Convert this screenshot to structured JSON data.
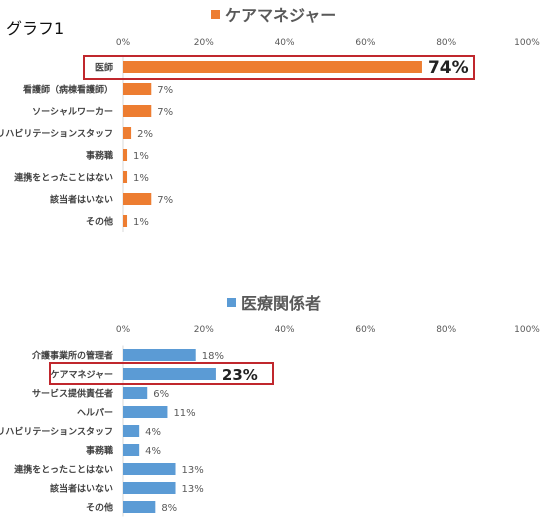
{
  "graph_label": "グラフ1",
  "chart_data": [
    {
      "type": "bar",
      "orientation": "horizontal",
      "title": "ケアマネジャー",
      "xlim": [
        0,
        100
      ],
      "ticks": [
        "0%",
        "20%",
        "40%",
        "60%",
        "80%",
        "100%"
      ],
      "categories": [
        "医師",
        "看護師（病棟看護師）",
        "ソーシャルワーカー",
        "リハビリテーションスタッフ",
        "事務職",
        "連携をとったことはない",
        "該当者はいない",
        "その他"
      ],
      "values": [
        74,
        7,
        7,
        2,
        1,
        1,
        7,
        1
      ],
      "value_labels": [
        "74%",
        "7%",
        "7%",
        "2%",
        "1%",
        "1%",
        "7%",
        "1%"
      ],
      "highlighted_category": "医師",
      "color": "#ED7D31",
      "highlight_color": "#C0272D",
      "grid": false,
      "legend": "top-center"
    },
    {
      "type": "bar",
      "orientation": "horizontal",
      "title": "医療関係者",
      "xlim": [
        0,
        100
      ],
      "ticks": [
        "0%",
        "20%",
        "40%",
        "60%",
        "80%",
        "100%"
      ],
      "categories": [
        "介護事業所の管理者",
        "ケアマネジャー",
        "サービス提供責任者",
        "ヘルパー",
        "リハビリテーションスタッフ",
        "事務職",
        "連携をとったことはない",
        "該当者はいない",
        "その他"
      ],
      "values": [
        18,
        23,
        6,
        11,
        4,
        4,
        13,
        13,
        8
      ],
      "value_labels": [
        "18%",
        "23%",
        "6%",
        "11%",
        "4%",
        "4%",
        "13%",
        "13%",
        "8%"
      ],
      "highlighted_category": "ケアマネジャー",
      "color": "#5B9BD5",
      "highlight_color": "#C0272D",
      "grid": false,
      "legend": "top-center"
    }
  ]
}
